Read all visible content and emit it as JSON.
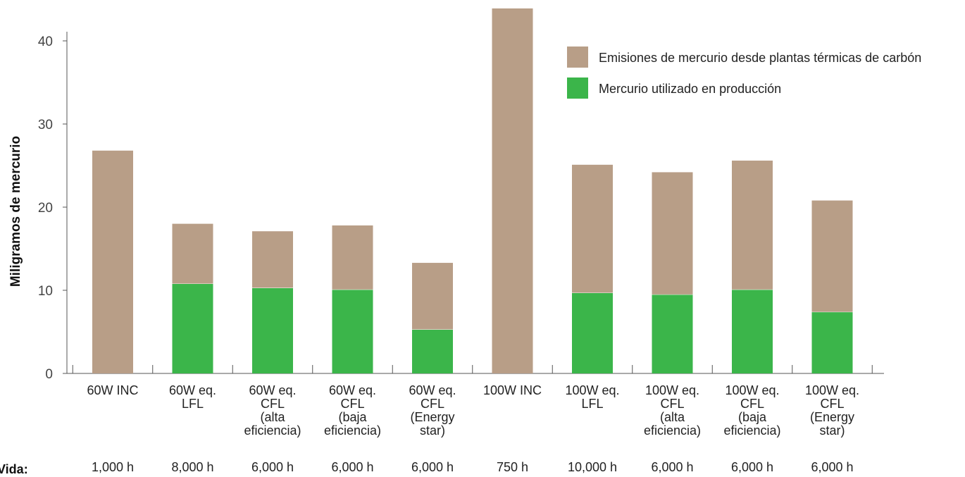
{
  "chart_data": {
    "type": "bar",
    "stacked": true,
    "ylabel": "Miligramos de mercurio",
    "ylim": [
      0,
      44
    ],
    "yticks": [
      0,
      10,
      20,
      30,
      40
    ],
    "grid": false,
    "legend_position": "top-right",
    "categories": [
      [
        "60W INC"
      ],
      [
        "60W eq.",
        "LFL"
      ],
      [
        "60W eq.",
        "CFL",
        "(alta",
        "eficiencia)"
      ],
      [
        "60W eq.",
        "CFL",
        "(baja",
        "eficiencia)"
      ],
      [
        "60W eq.",
        "CFL",
        "(Energy",
        "star)"
      ],
      [
        "100W INC"
      ],
      [
        "100W eq.",
        "LFL"
      ],
      [
        "100W eq.",
        "CFL",
        "(alta",
        "eficiencia)"
      ],
      [
        "100W eq.",
        "CFL",
        "(baja",
        "eficiencia)"
      ],
      [
        "100W eq.",
        "CFL",
        "(Energy",
        "star)"
      ]
    ],
    "series": [
      {
        "name": "Mercurio utilizado en producción",
        "color": "#3bb54a",
        "values": [
          0,
          10.8,
          10.3,
          10.1,
          5.3,
          0,
          9.7,
          9.5,
          10.1,
          7.4
        ]
      },
      {
        "name": "Emisiones de mercurio desde plantas térmicas de carbón",
        "color": "#b89e87",
        "values": [
          26.8,
          7.2,
          6.8,
          7.7,
          8.0,
          43.9,
          15.4,
          14.7,
          15.5,
          13.4
        ]
      }
    ],
    "life_label": "Vida:",
    "life_values": [
      "1,000 h",
      "8,000 h",
      "6,000 h",
      "6,000 h",
      "6,000 h",
      "750 h",
      "10,000 h",
      "6,000 h",
      "6,000 h",
      "6,000 h"
    ]
  }
}
